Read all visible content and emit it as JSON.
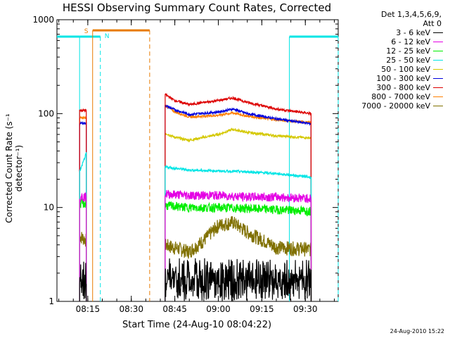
{
  "title": "HESSI Observing Summary Count Rates, Corrected",
  "xlabel": "Start Time (24-Aug-10 08:04:22)",
  "ylabel": "Corrected Count Rate (s⁻¹ detector⁻¹)",
  "footer_date": "24-Aug-2010 15:22",
  "legend_header": [
    "Det 1,3,4,5,6,9,",
    "Att 0"
  ],
  "flag_labels": {
    "saa": "S",
    "night": "N"
  },
  "colors": {
    "saa": "#e87b00",
    "night": "#00e5e5"
  },
  "chart_data": {
    "type": "line",
    "xlim": [
      "08:04:22",
      "09:41:20"
    ],
    "ylim": [
      1,
      1000
    ],
    "yscale": "log",
    "xticks": [
      "08:15",
      "08:30",
      "08:45",
      "09:00",
      "09:15",
      "09:30"
    ],
    "yticks": [
      "1",
      "10",
      "100",
      "1000"
    ],
    "legend_position": "top-right outside plot",
    "data_gaps": [
      [
        "08:16:40",
        "08:41:40"
      ]
    ],
    "flags": {
      "saa_interval": [
        "08:16:40",
        "08:36:20"
      ],
      "night_intervals": [
        [
          "08:04:22",
          "08:19:20"
        ],
        [
          "09:24:30",
          "09:41:20"
        ]
      ]
    },
    "series": [
      {
        "name": "3 - 6 keV",
        "color": "#000000",
        "segments": [
          {
            "x": [
              "08:12:10",
              "08:14:30"
            ],
            "values": [
              1.0,
              1.0
            ]
          },
          {
            "x": [
              "08:41:40",
              "08:50:00",
              "09:00:00",
              "09:10:00",
              "09:20:00",
              "09:32:00"
            ],
            "values": [
              1.6,
              1.6,
              1.8,
              1.6,
              1.5,
              1.5
            ]
          }
        ]
      },
      {
        "name": "6 - 12 keV",
        "color": "#e400e4",
        "segments": [
          {
            "x": [
              "08:12:10",
              "08:14:30"
            ],
            "values": [
              13,
              13
            ]
          },
          {
            "x": [
              "08:41:40",
              "08:50:00",
              "09:00:00",
              "09:10:00",
              "09:20:00",
              "09:32:00"
            ],
            "values": [
              14,
              13.5,
              13.5,
              13,
              13,
              12.5
            ]
          }
        ]
      },
      {
        "name": "12 - 25 keV",
        "color": "#00ee00",
        "segments": [
          {
            "x": [
              "08:12:10",
              "08:14:30"
            ],
            "values": [
              11,
              11
            ]
          },
          {
            "x": [
              "08:41:40",
              "08:50:00",
              "09:00:00",
              "09:10:00",
              "09:20:00",
              "09:32:00"
            ],
            "values": [
              10.5,
              10,
              10,
              9.8,
              9.5,
              9.2
            ]
          }
        ]
      },
      {
        "name": "25 - 50 keV",
        "color": "#00e5e5",
        "segments": [
          {
            "x": [
              "08:12:10",
              "08:13:00",
              "08:14:30"
            ],
            "values": [
              24,
              28,
              38
            ]
          },
          {
            "x": [
              "08:41:40",
              "08:50:00",
              "09:00:00",
              "09:10:00",
              "09:20:00",
              "09:32:00"
            ],
            "values": [
              27,
              25,
              24.5,
              24,
              23,
              21
            ]
          }
        ]
      },
      {
        "name": "50 - 100 keV",
        "color": "#d4c800",
        "segments": [
          {
            "x": [
              "08:41:40",
              "08:45:00",
              "08:50:00",
              "09:00:00",
              "09:05:00",
              "09:10:00",
              "09:20:00",
              "09:32:00"
            ],
            "values": [
              62,
              56,
              52,
              60,
              68,
              63,
              58,
              55
            ]
          }
        ]
      },
      {
        "name": "100 - 300 keV",
        "color": "#0000dd",
        "segments": [
          {
            "x": [
              "08:12:10",
              "08:14:30"
            ],
            "values": [
              79,
              79
            ]
          },
          {
            "x": [
              "08:41:40",
              "08:45:00",
              "08:50:00",
              "09:00:00",
              "09:05:00",
              "09:10:00",
              "09:20:00",
              "09:32:00"
            ],
            "values": [
              122,
              110,
              98,
              104,
              112,
              100,
              88,
              78
            ]
          }
        ]
      },
      {
        "name": "300 - 800 keV",
        "color": "#dd0000",
        "segments": [
          {
            "x": [
              "08:12:10",
              "08:14:30"
            ],
            "values": [
              108,
              108
            ]
          },
          {
            "x": [
              "08:41:40",
              "08:45:00",
              "08:50:00",
              "09:00:00",
              "09:05:00",
              "09:10:00",
              "09:20:00",
              "09:32:00"
            ],
            "values": [
              160,
              138,
              125,
              138,
              147,
              132,
              112,
              100
            ]
          }
        ]
      },
      {
        "name": "800 - 7000 keV",
        "color": "#ff7f00",
        "segments": [
          {
            "x": [
              "08:12:10",
              "08:14:30"
            ],
            "values": [
              90,
              90
            ]
          },
          {
            "x": [
              "08:41:40",
              "08:45:00",
              "08:50:00",
              "09:00:00",
              "09:05:00",
              "09:10:00",
              "09:20:00",
              "09:32:00"
            ],
            "values": [
              122,
              105,
              92,
              96,
              102,
              94,
              86,
              80
            ]
          }
        ]
      },
      {
        "name": "7000 - 20000 keV",
        "color": "#807000",
        "segments": [
          {
            "x": [
              "08:12:10",
              "08:14:30"
            ],
            "values": [
              5,
              4.5
            ]
          },
          {
            "x": [
              "08:41:40",
              "08:50:00",
              "08:55:00",
              "09:00:00",
              "09:05:00",
              "09:10:00",
              "09:20:00",
              "09:32:00"
            ],
            "values": [
              4,
              3.4,
              4.5,
              6.5,
              7,
              5.5,
              3.8,
              3.6
            ]
          }
        ]
      }
    ]
  }
}
